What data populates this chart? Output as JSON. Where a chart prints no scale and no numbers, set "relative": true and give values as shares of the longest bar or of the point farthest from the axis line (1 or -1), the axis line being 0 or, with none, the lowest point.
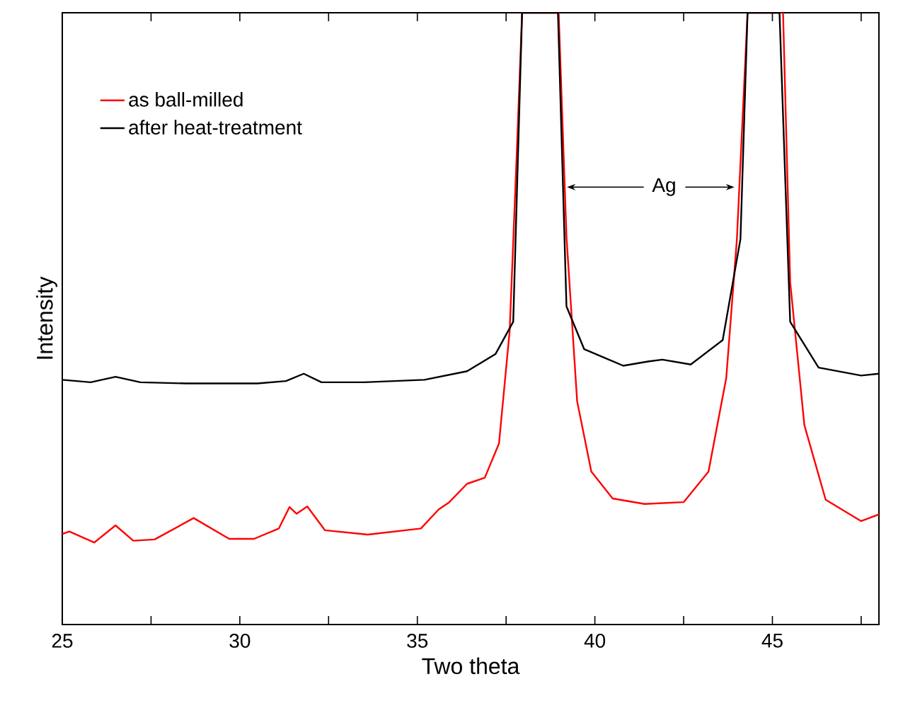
{
  "chart_data": {
    "type": "line",
    "xlabel": "Two theta",
    "ylabel": "Intensity",
    "relative": true,
    "tick_labels": "x",
    "xlim": [
      25,
      48
    ],
    "xticks": [
      25,
      {
        "value": 27.5,
        "label": null
      },
      30,
      {
        "value": 32.5,
        "label": null
      },
      35,
      {
        "value": 37.5,
        "label": null
      },
      40,
      {
        "value": 42.5,
        "label": null
      },
      45,
      {
        "value": 47.5,
        "label": null
      }
    ],
    "legend": "top left",
    "line_style": "solid",
    "annotations": [
      "Ag"
    ],
    "series": [
      {
        "name": "as ball-milled",
        "color": "#ff0000",
        "x": [
          25,
          25.2,
          25.9,
          26.5,
          27.0,
          27.6,
          28.7,
          29.7,
          30.4,
          31.1,
          31.4,
          31.6,
          31.9,
          32.4,
          33.6,
          35.1,
          35.6,
          35.9,
          36.4,
          36.9,
          37.3,
          37.6,
          37.8,
          37.95,
          38.45,
          38.98,
          39.2,
          39.5,
          39.9,
          40.5,
          41.4,
          42.5,
          43.2,
          43.7,
          44.0,
          44.3,
          44.8,
          45.3,
          45.5,
          45.9,
          46.5,
          47.5,
          48
        ],
        "values": [
          0.148,
          0.152,
          0.134,
          0.162,
          0.137,
          0.139,
          0.174,
          0.14,
          0.14,
          0.157,
          0.192,
          0.181,
          0.193,
          0.154,
          0.147,
          0.157,
          0.188,
          0.2,
          0.23,
          0.24,
          0.296,
          0.48,
          0.77,
          1,
          null,
          1,
          0.634,
          0.365,
          0.25,
          0.206,
          0.197,
          0.2,
          0.25,
          0.403,
          0.63,
          1,
          null,
          1,
          0.56,
          0.326,
          0.204,
          0.169,
          0.18
        ]
      },
      {
        "name": "after heat-treatment",
        "color": "#000000",
        "x": [
          25,
          25.8,
          26.5,
          27.2,
          28.5,
          30.5,
          31.3,
          31.8,
          32.3,
          33.5,
          35.2,
          36.4,
          37.2,
          37.7,
          37.95,
          38.45,
          38.96,
          39.2,
          39.7,
          40.8,
          41.5,
          41.9,
          42.7,
          43.6,
          44.1,
          44.3,
          44.75,
          45.2,
          45.5,
          46.3,
          47.5,
          48
        ],
        "values": [
          0.4,
          0.396,
          0.405,
          0.396,
          0.394,
          0.394,
          0.398,
          0.41,
          0.396,
          0.396,
          0.4,
          0.414,
          0.442,
          0.495,
          1,
          1,
          1,
          0.52,
          0.45,
          0.423,
          0.43,
          0.433,
          0.425,
          0.465,
          0.63,
          1,
          1,
          1,
          0.495,
          0.42,
          0.407,
          0.41
        ]
      }
    ]
  }
}
